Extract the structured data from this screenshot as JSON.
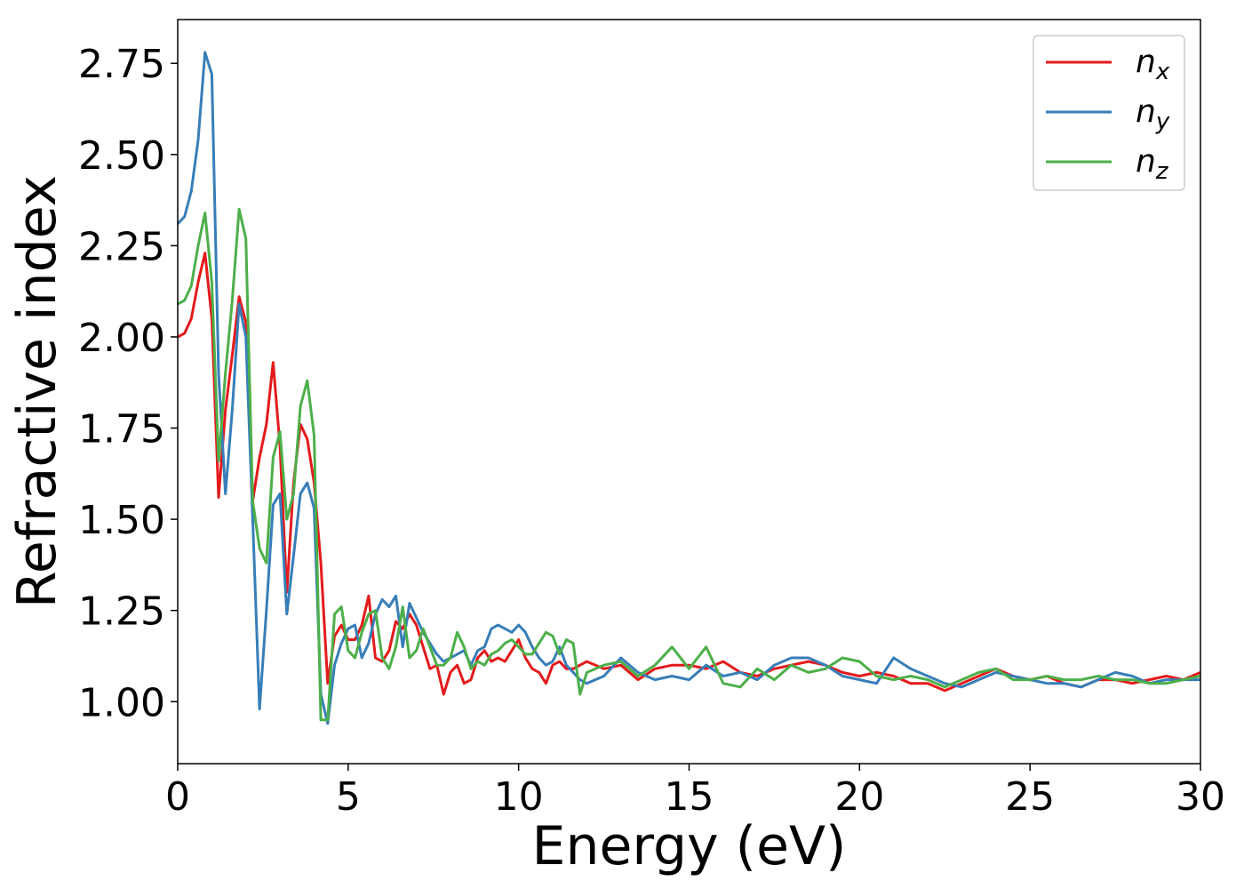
{
  "chart_data": {
    "type": "line",
    "xlabel": "Energy (eV)",
    "ylabel": "Refractive index",
    "xlim": [
      0,
      30
    ],
    "ylim": [
      0.83,
      2.87
    ],
    "xticks": [
      0,
      5,
      10,
      15,
      20,
      25,
      30
    ],
    "xtick_labels": [
      "0",
      "5",
      "10",
      "15",
      "20",
      "25",
      "30"
    ],
    "yticks": [
      1.0,
      1.25,
      1.5,
      1.75,
      2.0,
      2.25,
      2.5,
      2.75
    ],
    "ytick_labels": [
      "1.00",
      "1.25",
      "1.50",
      "1.75",
      "2.00",
      "2.25",
      "2.50",
      "2.75"
    ],
    "grid": false,
    "legend_position": "top-right",
    "series": [
      {
        "name": "n",
        "subscript": "x",
        "color": "#e41a1c",
        "x": [
          0,
          0.2,
          0.4,
          0.6,
          0.8,
          1.0,
          1.2,
          1.4,
          1.6,
          1.8,
          2.0,
          2.2,
          2.4,
          2.6,
          2.8,
          3.0,
          3.2,
          3.4,
          3.6,
          3.8,
          4.0,
          4.2,
          4.4,
          4.6,
          4.8,
          5.0,
          5.2,
          5.4,
          5.6,
          5.8,
          6.0,
          6.2,
          6.4,
          6.6,
          6.8,
          7.0,
          7.2,
          7.4,
          7.6,
          7.8,
          8.0,
          8.2,
          8.4,
          8.6,
          8.8,
          9.0,
          9.2,
          9.4,
          9.6,
          9.8,
          10.0,
          10.2,
          10.4,
          10.6,
          10.8,
          11.0,
          11.2,
          11.4,
          11.6,
          11.8,
          12.0,
          12.5,
          13.0,
          13.5,
          14.0,
          14.5,
          15.0,
          15.5,
          16.0,
          16.5,
          17.0,
          17.5,
          18.0,
          18.5,
          19.0,
          19.5,
          20.0,
          20.5,
          21.0,
          21.5,
          22.0,
          22.5,
          23.0,
          23.5,
          24.0,
          24.5,
          25.0,
          25.5,
          26.0,
          26.5,
          27.0,
          27.5,
          28.0,
          28.5,
          29.0,
          29.5,
          30.0
        ],
        "values": [
          2.0,
          2.01,
          2.05,
          2.15,
          2.23,
          2.05,
          1.56,
          1.8,
          1.95,
          2.11,
          2.04,
          1.55,
          1.67,
          1.76,
          1.93,
          1.7,
          1.3,
          1.6,
          1.76,
          1.72,
          1.6,
          1.38,
          1.05,
          1.18,
          1.21,
          1.17,
          1.17,
          1.21,
          1.29,
          1.12,
          1.11,
          1.14,
          1.22,
          1.2,
          1.24,
          1.21,
          1.15,
          1.09,
          1.1,
          1.02,
          1.08,
          1.1,
          1.05,
          1.06,
          1.12,
          1.14,
          1.11,
          1.12,
          1.11,
          1.14,
          1.17,
          1.12,
          1.09,
          1.08,
          1.05,
          1.1,
          1.11,
          1.09,
          1.09,
          1.1,
          1.11,
          1.09,
          1.1,
          1.06,
          1.09,
          1.1,
          1.1,
          1.09,
          1.11,
          1.08,
          1.07,
          1.09,
          1.1,
          1.11,
          1.1,
          1.08,
          1.07,
          1.08,
          1.07,
          1.05,
          1.05,
          1.03,
          1.05,
          1.07,
          1.09,
          1.07,
          1.06,
          1.07,
          1.05,
          1.04,
          1.06,
          1.06,
          1.05,
          1.06,
          1.07,
          1.06,
          1.08
        ]
      },
      {
        "name": "n",
        "subscript": "y",
        "color": "#377eb8",
        "x": [
          0,
          0.2,
          0.4,
          0.6,
          0.8,
          1.0,
          1.2,
          1.4,
          1.6,
          1.8,
          2.0,
          2.2,
          2.4,
          2.6,
          2.8,
          3.0,
          3.2,
          3.4,
          3.6,
          3.8,
          4.0,
          4.2,
          4.4,
          4.6,
          4.8,
          5.0,
          5.2,
          5.4,
          5.6,
          5.8,
          6.0,
          6.2,
          6.4,
          6.6,
          6.8,
          7.0,
          7.2,
          7.4,
          7.6,
          7.8,
          8.0,
          8.2,
          8.4,
          8.6,
          8.8,
          9.0,
          9.2,
          9.4,
          9.6,
          9.8,
          10.0,
          10.2,
          10.4,
          10.6,
          10.8,
          11.0,
          11.2,
          11.4,
          11.6,
          11.8,
          12.0,
          12.5,
          13.0,
          13.5,
          14.0,
          14.5,
          15.0,
          15.5,
          16.0,
          16.5,
          17.0,
          17.5,
          18.0,
          18.5,
          19.0,
          19.5,
          20.0,
          20.5,
          21.0,
          21.5,
          22.0,
          22.5,
          23.0,
          23.5,
          24.0,
          24.5,
          25.0,
          25.5,
          26.0,
          26.5,
          27.0,
          27.5,
          28.0,
          28.5,
          29.0,
          29.5,
          30.0
        ],
        "values": [
          2.31,
          2.33,
          2.4,
          2.54,
          2.78,
          2.72,
          1.9,
          1.57,
          1.8,
          2.09,
          2.0,
          1.5,
          0.98,
          1.25,
          1.54,
          1.57,
          1.24,
          1.4,
          1.57,
          1.6,
          1.53,
          1.02,
          0.94,
          1.1,
          1.16,
          1.2,
          1.21,
          1.12,
          1.16,
          1.24,
          1.28,
          1.26,
          1.29,
          1.15,
          1.27,
          1.23,
          1.19,
          1.16,
          1.13,
          1.11,
          1.12,
          1.13,
          1.14,
          1.1,
          1.14,
          1.15,
          1.2,
          1.21,
          1.2,
          1.19,
          1.21,
          1.19,
          1.15,
          1.12,
          1.1,
          1.11,
          1.15,
          1.1,
          1.08,
          1.06,
          1.05,
          1.07,
          1.12,
          1.08,
          1.06,
          1.07,
          1.06,
          1.1,
          1.07,
          1.08,
          1.06,
          1.1,
          1.12,
          1.12,
          1.1,
          1.07,
          1.06,
          1.05,
          1.12,
          1.09,
          1.07,
          1.05,
          1.04,
          1.06,
          1.08,
          1.07,
          1.06,
          1.05,
          1.05,
          1.04,
          1.06,
          1.08,
          1.07,
          1.05,
          1.06,
          1.06,
          1.06
        ]
      },
      {
        "name": "n",
        "subscript": "z",
        "color": "#4daf4a",
        "x": [
          0,
          0.2,
          0.4,
          0.6,
          0.8,
          1.0,
          1.2,
          1.4,
          1.6,
          1.8,
          2.0,
          2.2,
          2.4,
          2.6,
          2.8,
          3.0,
          3.2,
          3.4,
          3.6,
          3.8,
          4.0,
          4.2,
          4.4,
          4.6,
          4.8,
          5.0,
          5.2,
          5.4,
          5.6,
          5.8,
          6.0,
          6.2,
          6.4,
          6.6,
          6.8,
          7.0,
          7.2,
          7.4,
          7.6,
          7.8,
          8.0,
          8.2,
          8.4,
          8.6,
          8.8,
          9.0,
          9.2,
          9.4,
          9.6,
          9.8,
          10.0,
          10.2,
          10.4,
          10.6,
          10.8,
          11.0,
          11.2,
          11.4,
          11.6,
          11.8,
          12.0,
          12.5,
          13.0,
          13.5,
          14.0,
          14.5,
          15.0,
          15.5,
          16.0,
          16.5,
          17.0,
          17.5,
          18.0,
          18.5,
          19.0,
          19.5,
          20.0,
          20.5,
          21.0,
          21.5,
          22.0,
          22.5,
          23.0,
          23.5,
          24.0,
          24.5,
          25.0,
          25.5,
          26.0,
          26.5,
          27.0,
          27.5,
          28.0,
          28.5,
          29.0,
          29.5,
          30.0
        ],
        "values": [
          2.09,
          2.1,
          2.14,
          2.25,
          2.34,
          2.15,
          1.66,
          1.9,
          2.1,
          2.35,
          2.27,
          1.55,
          1.42,
          1.38,
          1.67,
          1.74,
          1.5,
          1.57,
          1.81,
          1.88,
          1.73,
          0.95,
          0.95,
          1.24,
          1.26,
          1.14,
          1.12,
          1.19,
          1.24,
          1.25,
          1.12,
          1.09,
          1.15,
          1.26,
          1.12,
          1.14,
          1.2,
          1.15,
          1.1,
          1.1,
          1.12,
          1.19,
          1.15,
          1.09,
          1.11,
          1.1,
          1.13,
          1.14,
          1.16,
          1.17,
          1.15,
          1.13,
          1.13,
          1.16,
          1.19,
          1.18,
          1.13,
          1.17,
          1.16,
          1.02,
          1.08,
          1.1,
          1.11,
          1.07,
          1.1,
          1.15,
          1.09,
          1.15,
          1.05,
          1.04,
          1.09,
          1.06,
          1.1,
          1.08,
          1.09,
          1.12,
          1.11,
          1.07,
          1.06,
          1.07,
          1.06,
          1.04,
          1.06,
          1.08,
          1.09,
          1.06,
          1.06,
          1.07,
          1.06,
          1.06,
          1.07,
          1.06,
          1.06,
          1.05,
          1.05,
          1.06,
          1.07
        ]
      }
    ]
  }
}
